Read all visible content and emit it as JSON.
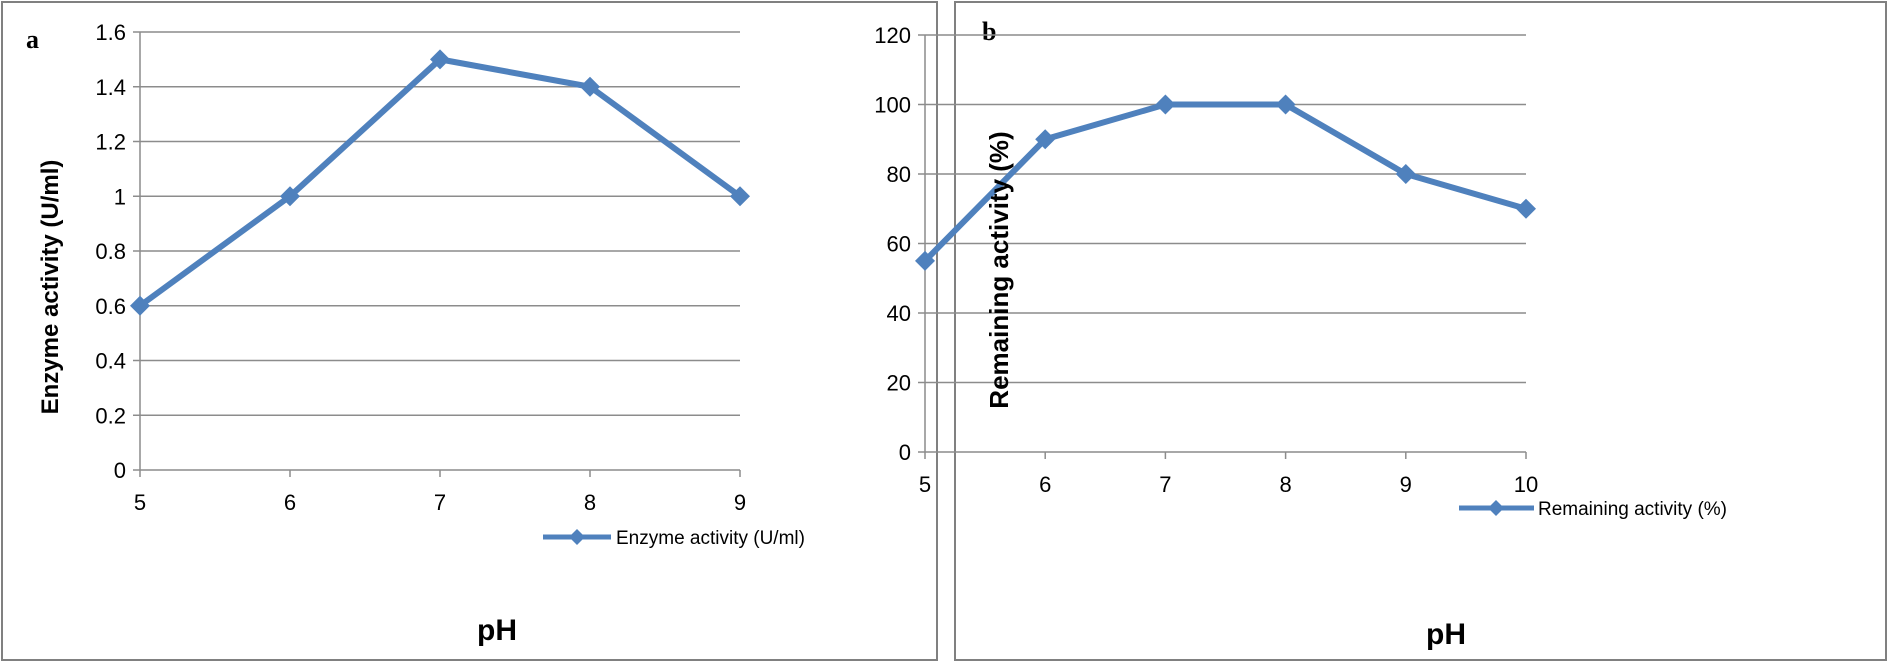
{
  "chart_data": [
    {
      "panel": "a",
      "type": "line",
      "title": "",
      "xlabel": "pH",
      "ylabel": "Enzyme activity (U/ml)",
      "categories": [
        "5",
        "6",
        "7",
        "8",
        "9"
      ],
      "x": [
        5,
        6,
        7,
        8,
        9
      ],
      "ylim": [
        0,
        1.6
      ],
      "yticks": [
        "0",
        "0.2",
        "0.4",
        "0.6",
        "0.8",
        "1",
        "1.2",
        "1.4",
        "1.6"
      ],
      "series": [
        {
          "name": "Enzyme activity (U/ml)",
          "values": [
            0.6,
            1.0,
            1.5,
            1.4,
            1.0
          ]
        }
      ],
      "grid": true,
      "legend": "bottom-right",
      "color": "#4F81BD"
    },
    {
      "panel": "b",
      "type": "line",
      "title": "",
      "xlabel": "pH",
      "ylabel": "Remaining activity (%)",
      "categories": [
        "5",
        "6",
        "7",
        "8",
        "9",
        "10"
      ],
      "x": [
        5,
        6,
        7,
        8,
        9,
        10
      ],
      "ylim": [
        0,
        120
      ],
      "yticks": [
        "0",
        "20",
        "40",
        "60",
        "80",
        "100",
        "120"
      ],
      "series": [
        {
          "name": "Remaining activity (%)",
          "values": [
            55,
            90,
            100,
            100,
            80,
            70
          ]
        }
      ],
      "grid": true,
      "legend": "bottom-right",
      "color": "#4F81BD"
    }
  ]
}
